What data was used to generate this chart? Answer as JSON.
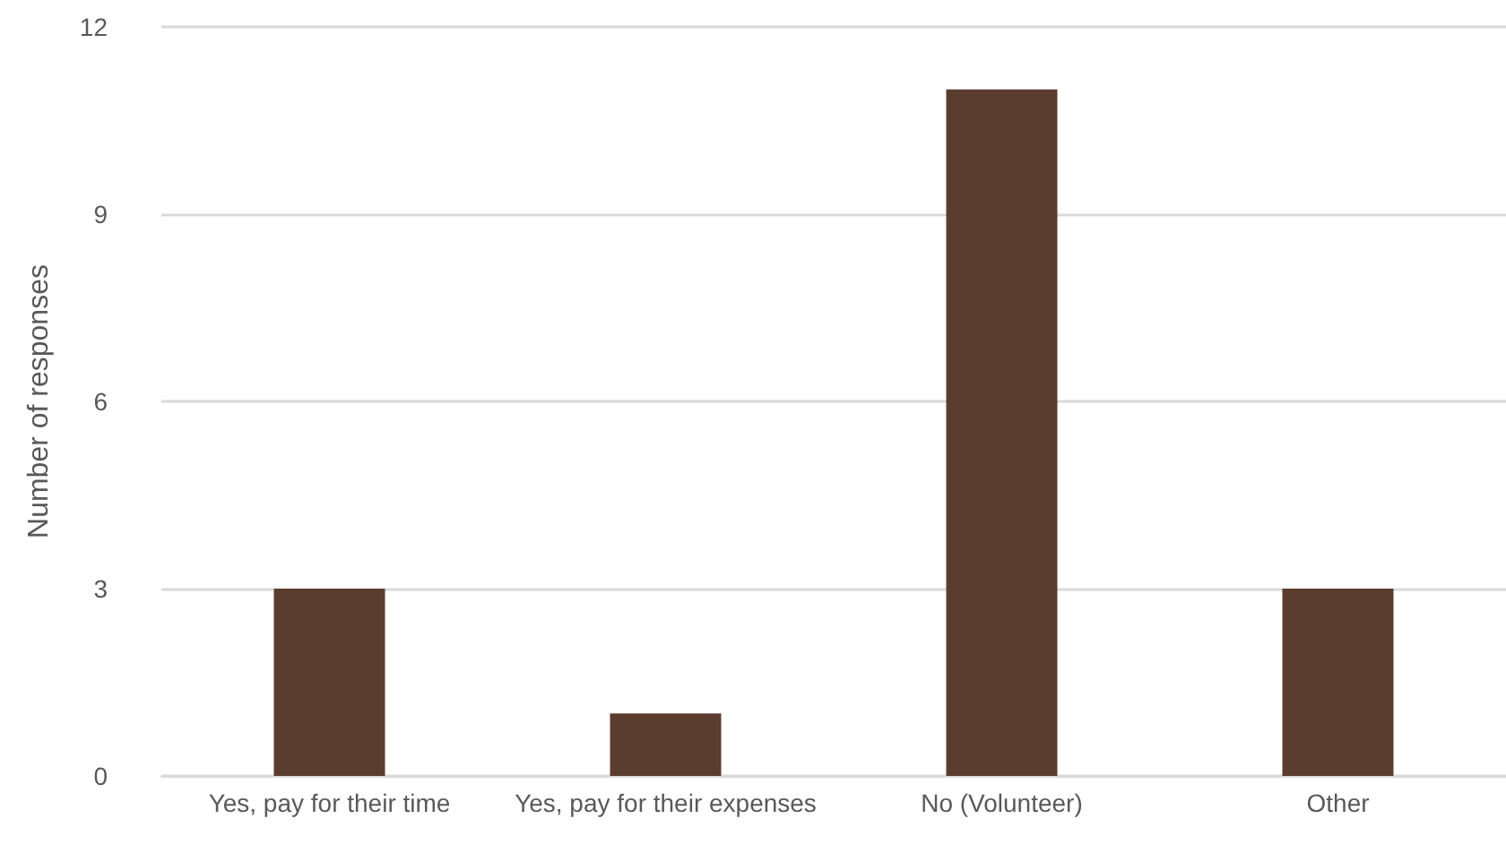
{
  "chart_data": {
    "type": "bar",
    "ylabel": "Number of responses",
    "categories": [
      "Yes, pay for their time",
      "Yes, pay for their expenses",
      "No (Volunteer)",
      "Other"
    ],
    "values": [
      3,
      1,
      11,
      3
    ],
    "color": "#5b3d30",
    "ylim": [
      0,
      12
    ],
    "yticks": [
      0,
      3,
      6,
      9,
      12
    ],
    "grid": "y"
  }
}
